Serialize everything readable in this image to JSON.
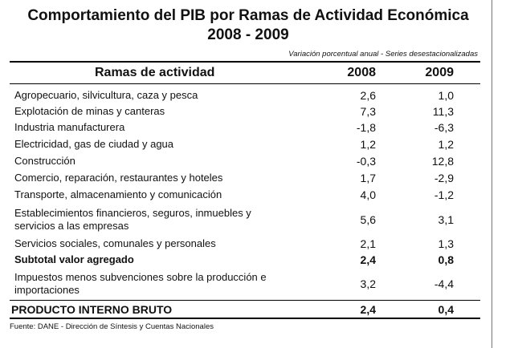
{
  "title_line1": "Comportamiento del PIB por Ramas de Actividad Económica",
  "title_line2": "2008 - 2009",
  "subtitle": "Variación porcentual anual - Series desestacionalizadas",
  "columns": {
    "branch": "Ramas de actividad",
    "y2008": "2008",
    "y2009": "2009"
  },
  "rows": [
    {
      "branch": [
        "Agropecuario, silvicultura, caza y pesca"
      ],
      "v2008": "2,6",
      "v2009": "1,0"
    },
    {
      "branch": [
        "Explotación de minas y canteras"
      ],
      "v2008": "7,3",
      "v2009": "11,3"
    },
    {
      "branch": [
        "Industria manufacturera"
      ],
      "v2008": "-1,8",
      "v2009": "-6,3"
    },
    {
      "branch": [
        "Electricidad, gas de ciudad y agua"
      ],
      "v2008": "1,2",
      "v2009": "1,2"
    },
    {
      "branch": [
        "Construcción"
      ],
      "v2008": "-0,3",
      "v2009": "12,8"
    },
    {
      "branch": [
        "Comercio, reparación, restaurantes y hoteles"
      ],
      "v2008": "1,7",
      "v2009": "-2,9"
    },
    {
      "branch": [
        "Transporte, almacenamiento y comunicación"
      ],
      "v2008": "4,0",
      "v2009": "-1,2"
    },
    {
      "branch": [
        "Establecimientos financieros, seguros, inmuebles y",
        "servicios a las empresas"
      ],
      "v2008": "5,6",
      "v2009": "3,1"
    },
    {
      "branch": [
        "Servicios sociales, comunales y personales"
      ],
      "v2008": "2,1",
      "v2009": "1,3"
    },
    {
      "branch": [
        "Subtotal valor agregado"
      ],
      "v2008": "2,4",
      "v2009": "0,8"
    },
    {
      "branch": [
        "Impuestos menos subvenciones sobre la producción e",
        "importaciones"
      ],
      "v2008": "3,2",
      "v2009": "-4,4"
    }
  ],
  "total": {
    "branch": "PRODUCTO INTERNO BRUTO",
    "v2008": "2,4",
    "v2009": "0,4"
  },
  "footnote": "Fuente: DANE - Dirección de Síntesis y Cuentas Nacionales"
}
